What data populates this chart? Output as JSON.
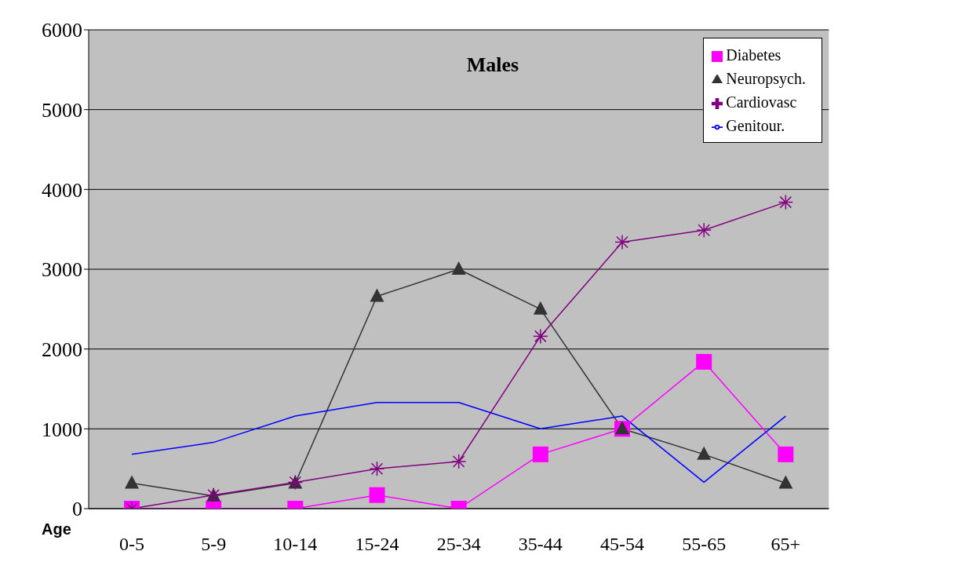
{
  "chart_data": {
    "type": "line",
    "title": "Males",
    "xlabel": "Age",
    "categories": [
      "0-5",
      "5-9",
      "10-14",
      "15-24",
      "25-34",
      "35-44",
      "45-54",
      "55-65",
      "65+"
    ],
    "series": [
      {
        "name": "Diabetes",
        "color": "#ff00ff",
        "marker": "square",
        "values": [
          0,
          0,
          0,
          170,
          0,
          680,
          1000,
          1840,
          680
        ]
      },
      {
        "name": "Neuropsych.",
        "color": "#333333",
        "marker": "triangle",
        "values": [
          320,
          160,
          320,
          2660,
          3000,
          2500,
          1000,
          680,
          320
        ]
      },
      {
        "name": "Cardiovasc",
        "color": "#800080",
        "marker": "cross",
        "values": [
          0,
          170,
          330,
          500,
          590,
          2160,
          3340,
          3490,
          3840
        ]
      },
      {
        "name": "Genitour.",
        "color": "#0000ff",
        "marker": "none",
        "values": [
          680,
          830,
          1160,
          1330,
          1330,
          1000,
          1160,
          330,
          1160
        ]
      }
    ],
    "ylim": [
      0,
      6000
    ],
    "yticks": [
      0,
      1000,
      2000,
      3000,
      4000,
      5000,
      6000
    ],
    "grid": "y",
    "legend": "top right",
    "line_style": "solid"
  }
}
